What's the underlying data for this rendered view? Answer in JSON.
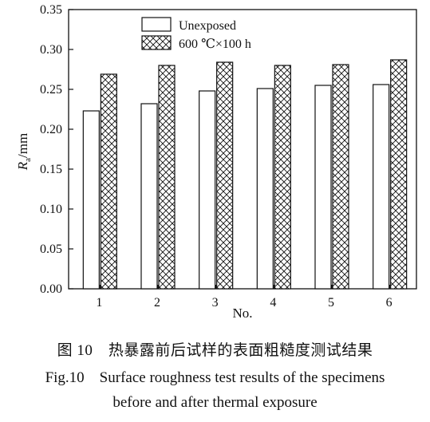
{
  "chart_data": {
    "type": "bar",
    "title": "",
    "xlabel": "No.",
    "ylabel_main": "R",
    "ylabel_sub": "a",
    "ylabel_unit": "/mm",
    "categories": [
      "1",
      "2",
      "3",
      "4",
      "5",
      "6"
    ],
    "y_ticks": [
      "0.00",
      "0.05",
      "0.10",
      "0.15",
      "0.20",
      "0.25",
      "0.30",
      "0.35"
    ],
    "ylim": [
      0,
      0.35
    ],
    "legend_position": "top-left",
    "series": [
      {
        "name": "Unexposed",
        "pattern": "none",
        "values": [
          0.223,
          0.232,
          0.248,
          0.251,
          0.255,
          0.256
        ]
      },
      {
        "name": "600 ℃×100 h",
        "pattern": "crosshatch",
        "values": [
          0.269,
          0.28,
          0.284,
          0.28,
          0.281,
          0.287
        ]
      }
    ]
  },
  "caption": {
    "cn": "图 10　热暴露前后试样的表面粗糙度测试结果",
    "en_line1": "Fig.10　Surface roughness test results of the specimens",
    "en_line2": "before and after thermal exposure"
  },
  "colors": {
    "ink": "#111111",
    "bar_fill": "#ffffff"
  }
}
